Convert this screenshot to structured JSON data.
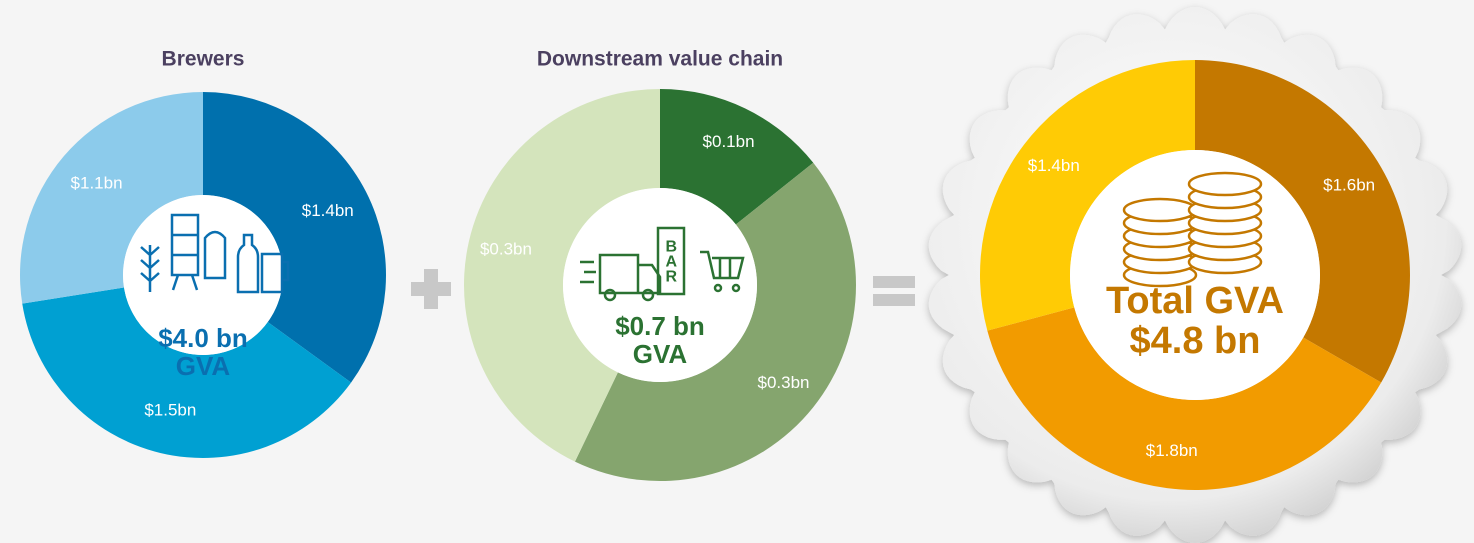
{
  "chart_data": [
    {
      "type": "donut",
      "title": "Brewers",
      "values": [
        1.4,
        1.5,
        1.1
      ],
      "value_labels": [
        "$1.4bn",
        "$1.5bn",
        "$1.1bn"
      ],
      "colors": [
        "#0070ad",
        "#00a0d2",
        "#8ccbeb"
      ],
      "center_lines": [
        "$4.0 bn",
        "GVA"
      ],
      "center_color": "#0a6fb0"
    },
    {
      "type": "donut",
      "title": "Downstream value chain",
      "values": [
        0.1,
        0.3,
        0.3
      ],
      "value_labels": [
        "$0.1bn",
        "$0.3bn",
        "$0.3bn"
      ],
      "colors": [
        "#2b7232",
        "#85a56e",
        "#d4e4bc"
      ],
      "center_lines": [
        "$0.7 bn",
        "GVA"
      ],
      "center_color": "#2b7232",
      "icon_label": "BAR"
    },
    {
      "type": "donut",
      "values": [
        1.6,
        1.8,
        1.4
      ],
      "value_labels": [
        "$1.6bn",
        "$1.8bn",
        "$1.4bn"
      ],
      "colors": [
        "#c47800",
        "#f29b00",
        "#ffcb05"
      ],
      "center_lines": [
        "Total GVA",
        "$4.8 bn"
      ],
      "center_color": "#c47800"
    }
  ]
}
